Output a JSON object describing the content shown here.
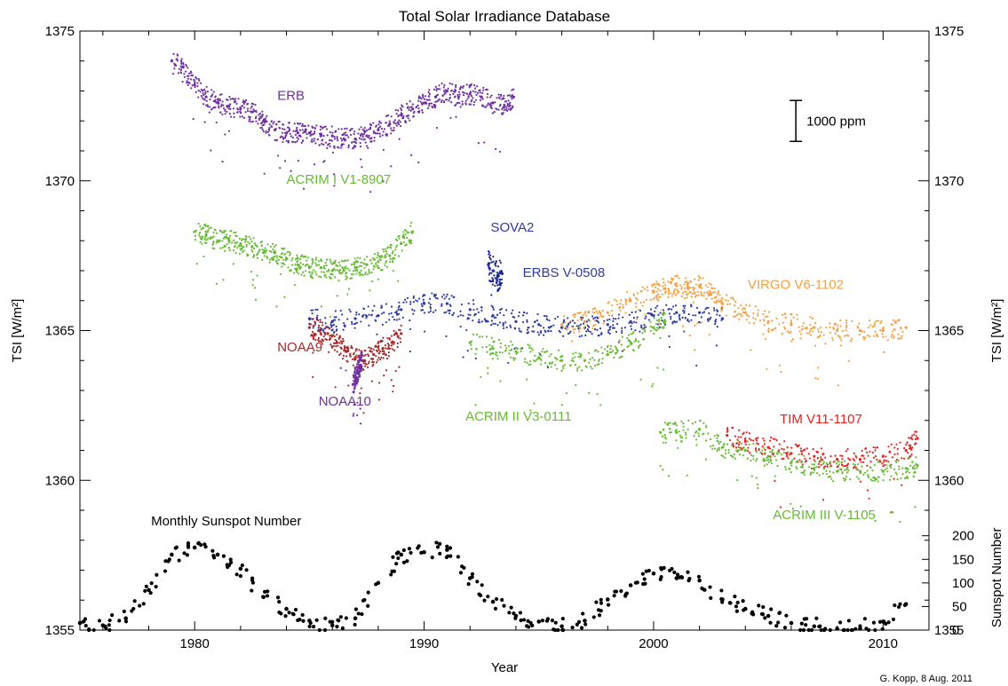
{
  "chart_data": {
    "type": "scatter",
    "title": "Total Solar Irradiance Database",
    "xlabel": "Year",
    "ylabel_left": "TSI [W/m²]",
    "ylabel_right": "TSI [W/m²]",
    "ylabel_sunspot": "Sunspot Number",
    "xlim": [
      1975,
      2012
    ],
    "ylim": [
      1355,
      1375
    ],
    "x_ticks": [
      1980,
      1990,
      2000,
      2010
    ],
    "x_tick_labels": [
      "1980",
      "1990",
      "2000",
      "2010"
    ],
    "y_ticks": [
      1355,
      1360,
      1365,
      1370,
      1375
    ],
    "y_tick_labels": [
      "1355",
      "1360",
      "1365",
      "1370",
      "1375"
    ],
    "sunspot_ticks": [
      0,
      50,
      100,
      150,
      200
    ],
    "sunspot_tick_labels": [
      "0",
      "50",
      "100",
      "150",
      "200"
    ],
    "scale_bar_label": "1000 ppm",
    "scale_bar_ppm": 1000,
    "credit": "G. Kopp,  8 Aug. 2011",
    "grid": false,
    "series": [
      {
        "name": "ERB",
        "color": "#7030a0",
        "x": [
          1979.0,
          1979.5,
          1980.0,
          1980.5,
          1981.0,
          1981.5,
          1982.0,
          1982.5,
          1983.0,
          1983.5,
          1984.0,
          1984.5,
          1985.0,
          1985.5,
          1986.0,
          1986.5,
          1987.0,
          1987.5,
          1988.0,
          1988.5,
          1989.0,
          1989.5,
          1990.0,
          1990.5,
          1991.0,
          1991.5,
          1992.0,
          1992.5,
          1993.0,
          1993.5,
          1993.9
        ],
        "y": [
          1374.0,
          1373.8,
          1373.2,
          1372.8,
          1372.6,
          1372.5,
          1372.4,
          1372.3,
          1372.0,
          1371.7,
          1371.6,
          1371.6,
          1371.6,
          1371.5,
          1371.5,
          1371.4,
          1371.4,
          1371.5,
          1371.7,
          1371.9,
          1372.2,
          1372.4,
          1372.6,
          1372.8,
          1373.0,
          1372.8,
          1372.9,
          1372.8,
          1372.6,
          1372.5,
          1372.8
        ]
      },
      {
        "name": "ACRIM I V1-8907",
        "color": "#66bb33",
        "x": [
          1980.0,
          1980.5,
          1981.0,
          1981.5,
          1982.0,
          1982.5,
          1983.0,
          1983.5,
          1984.0,
          1984.5,
          1985.0,
          1985.5,
          1986.0,
          1986.5,
          1987.0,
          1987.5,
          1988.0,
          1988.5,
          1989.0,
          1989.5
        ],
        "y": [
          1368.3,
          1368.2,
          1368.0,
          1368.0,
          1367.9,
          1367.8,
          1367.6,
          1367.6,
          1367.4,
          1367.2,
          1367.1,
          1367.1,
          1367.0,
          1367.0,
          1367.1,
          1367.2,
          1367.3,
          1367.5,
          1367.9,
          1368.3
        ]
      },
      {
        "name": "NOAA9",
        "color": "#a52a2a",
        "x": [
          1985.0,
          1985.4,
          1985.8,
          1986.2,
          1986.6,
          1987.0,
          1987.4,
          1987.8,
          1988.2,
          1988.6,
          1989.0
        ],
        "y": [
          1365.1,
          1365.0,
          1364.9,
          1364.6,
          1364.3,
          1364.1,
          1364.0,
          1364.2,
          1364.4,
          1364.6,
          1364.9
        ]
      },
      {
        "name": "NOAA10",
        "color": "#7030a0",
        "x": [
          1986.9,
          1987.0,
          1987.1,
          1987.2,
          1987.3
        ],
        "y": [
          1363.2,
          1363.4,
          1363.6,
          1363.8,
          1364.0
        ]
      },
      {
        "name": "ERBS V-0508",
        "color": "#2d3c9e",
        "x": [
          1985.0,
          1986.0,
          1987.0,
          1988.0,
          1989.0,
          1990.0,
          1991.0,
          1992.0,
          1993.0,
          1994.0,
          1995.0,
          1996.0,
          1997.0,
          1998.0,
          1999.0,
          2000.0,
          2001.0,
          2002.0,
          2003.0
        ],
        "y": [
          1365.4,
          1365.3,
          1365.4,
          1365.5,
          1365.7,
          1365.9,
          1365.9,
          1365.7,
          1365.5,
          1365.3,
          1365.2,
          1365.1,
          1365.1,
          1365.2,
          1365.3,
          1365.5,
          1365.6,
          1365.6,
          1365.4
        ]
      },
      {
        "name": "SOVA2",
        "color": "#1e2a8c",
        "x": [
          1992.8,
          1993.0,
          1993.2,
          1993.4
        ],
        "y": [
          1367.2,
          1367.0,
          1366.8,
          1366.9
        ]
      },
      {
        "name": "VIRGO V6-1102",
        "color": "#f5a040",
        "x": [
          1996.0,
          1997.0,
          1998.0,
          1999.0,
          2000.0,
          2000.5,
          2001.0,
          2001.5,
          2002.0,
          2002.5,
          2003.0,
          2004.0,
          2005.0,
          2006.0,
          2007.0,
          2008.0,
          2009.0,
          2010.0,
          2011.0
        ],
        "y": [
          1365.2,
          1365.3,
          1365.6,
          1366.0,
          1366.3,
          1366.4,
          1366.5,
          1366.4,
          1366.5,
          1366.2,
          1365.9,
          1365.6,
          1365.3,
          1365.2,
          1365.1,
          1365.0,
          1365.0,
          1365.0,
          1365.1
        ]
      },
      {
        "name": "ACRIM II V3-0111",
        "color": "#66bb33",
        "x": [
          1992.0,
          1993.0,
          1994.0,
          1995.0,
          1996.0,
          1997.0,
          1998.0,
          1999.0,
          2000.0,
          2000.5
        ],
        "y": [
          1364.6,
          1364.4,
          1364.3,
          1364.1,
          1364.0,
          1364.0,
          1364.2,
          1364.6,
          1365.1,
          1365.3
        ]
      },
      {
        "name": "TIM V11-1107",
        "color": "#e82020",
        "x": [
          2003.2,
          2004.0,
          2005.0,
          2006.0,
          2007.0,
          2008.0,
          2009.0,
          2010.0,
          2011.0,
          2011.5
        ],
        "y": [
          1361.5,
          1361.3,
          1361.1,
          1360.9,
          1360.8,
          1360.7,
          1360.7,
          1360.8,
          1361.0,
          1361.4
        ]
      },
      {
        "name": "ACRIM III V-1105",
        "color": "#66bb33",
        "x": [
          2000.3,
          2001.0,
          2002.0,
          2003.0,
          2004.0,
          2005.0,
          2006.0,
          2007.0,
          2008.0,
          2009.0,
          2010.0,
          2011.0,
          2011.5
        ],
        "y": [
          1361.6,
          1361.6,
          1361.7,
          1361.1,
          1361.0,
          1360.8,
          1360.6,
          1360.4,
          1360.3,
          1360.3,
          1360.3,
          1360.4,
          1360.5
        ]
      },
      {
        "name": "Monthly Sunspot Number",
        "color": "#000000",
        "axis": "sunspot",
        "x": [
          1975.0,
          1976.0,
          1977.0,
          1978.0,
          1979.0,
          1980.0,
          1981.0,
          1982.0,
          1983.0,
          1984.0,
          1985.0,
          1986.0,
          1987.0,
          1988.0,
          1989.0,
          1990.0,
          1991.0,
          1992.0,
          1993.0,
          1994.0,
          1995.0,
          1996.0,
          1997.0,
          1998.0,
          1999.0,
          2000.0,
          2001.0,
          2002.0,
          2003.0,
          2004.0,
          2005.0,
          2006.0,
          2007.0,
          2008.0,
          2009.0,
          2010.0,
          2011.0
        ],
        "y": [
          15,
          10,
          25,
          85,
          160,
          175,
          160,
          130,
          70,
          45,
          20,
          10,
          25,
          100,
          160,
          165,
          170,
          110,
          60,
          30,
          18,
          8,
          20,
          65,
          95,
          120,
          110,
          105,
          65,
          45,
          30,
          15,
          8,
          3,
          3,
          18,
          55
        ]
      }
    ],
    "annotations": [
      {
        "text": "ERB",
        "x": 1983.6,
        "y": 1372.7,
        "color": "#7030a0"
      },
      {
        "text": "ACRIM I V1-8907",
        "x": 1984.0,
        "y": 1369.9,
        "color": "#66bb33"
      },
      {
        "text": "SOVA2",
        "x": 1992.9,
        "y": 1368.3,
        "color": "#2d3c9e"
      },
      {
        "text": "ERBS V-0508",
        "x": 1994.3,
        "y": 1366.8,
        "color": "#2d3c9e"
      },
      {
        "text": "VIRGO V6-1102",
        "x": 2004.1,
        "y": 1366.4,
        "color": "#f5a040"
      },
      {
        "text": "NOAA9",
        "x": 1983.6,
        "y": 1364.3,
        "color": "#a52a2a"
      },
      {
        "text": "NOAA10",
        "x": 1985.4,
        "y": 1362.5,
        "color": "#7030a0"
      },
      {
        "text": "ACRIM II V3-0111",
        "x": 1991.8,
        "y": 1362.0,
        "color": "#66bb33"
      },
      {
        "text": "TIM V11-1107",
        "x": 2005.5,
        "y": 1361.9,
        "color": "#e82020"
      },
      {
        "text": "ACRIM III V-1105",
        "x": 2005.2,
        "y": 1358.7,
        "color": "#66bb33"
      },
      {
        "text": "Monthly Sunspot Number",
        "x": 1978.1,
        "y": 1358.5,
        "color": "#000000"
      }
    ]
  }
}
